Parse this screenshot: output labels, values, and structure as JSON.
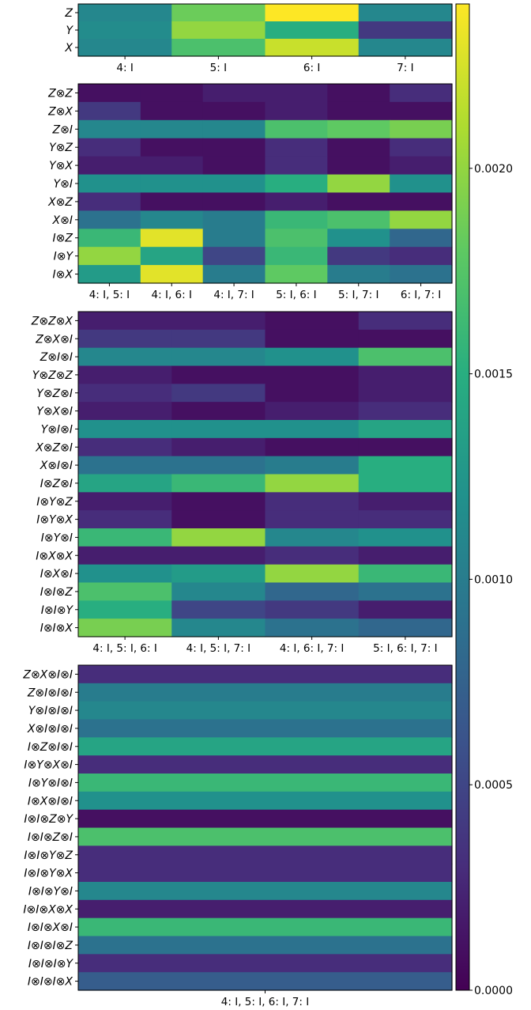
{
  "chart_data": {
    "type": "heatmap",
    "colormap": "viridis",
    "colorbar": {
      "min": 0.0,
      "max": 0.0024,
      "ticks": [
        0.0,
        0.0005,
        0.001,
        0.0015,
        0.002
      ],
      "tick_labels": [
        "0.0000",
        "0.0005",
        "0.0010",
        "0.0015",
        "0.0020"
      ]
    },
    "panels": [
      {
        "rows": [
          "Z",
          "Y",
          "X"
        ],
        "columns": [
          "4: I",
          "5: I",
          "6: I",
          "7: I"
        ],
        "values": [
          [
            0.0011,
            0.00185,
            0.0024,
            0.0011
          ],
          [
            0.00115,
            0.002,
            0.0015,
            0.0004
          ],
          [
            0.0011,
            0.0017,
            0.0022,
            0.0011
          ]
        ]
      },
      {
        "rows": [
          "Z⊗Z",
          "Z⊗X",
          "Z⊗I",
          "Y⊗Z",
          "Y⊗X",
          "Y⊗I",
          "X⊗Z",
          "X⊗I",
          "I⊗Z",
          "I⊗Y",
          "I⊗X"
        ],
        "columns": [
          "4: I, 5: I",
          "4: I, 6: I",
          "4: I, 7: I",
          "5: I, 6: I",
          "5: I, 7: I",
          "6: I, 7: I"
        ],
        "values": [
          [
            0.0001,
            0.0001,
            0.0002,
            0.0002,
            0.0001,
            0.0003
          ],
          [
            0.0004,
            0.0001,
            0.0001,
            0.0002,
            0.0001,
            0.0001
          ],
          [
            0.0011,
            0.0011,
            0.0011,
            0.0017,
            0.0018,
            0.0019
          ],
          [
            0.0003,
            0.0001,
            0.0001,
            0.0003,
            0.0001,
            0.0003
          ],
          [
            0.0002,
            0.0002,
            0.0001,
            0.0003,
            0.0001,
            0.0002
          ],
          [
            0.0012,
            0.0012,
            0.0012,
            0.0015,
            0.002,
            0.0012
          ],
          [
            0.0003,
            0.0001,
            0.0001,
            0.0002,
            0.0001,
            0.0001
          ],
          [
            0.0009,
            0.0011,
            0.001,
            0.0016,
            0.0017,
            0.002
          ],
          [
            0.0016,
            0.0023,
            0.001,
            0.0017,
            0.0012,
            0.0008
          ],
          [
            0.002,
            0.0014,
            0.0005,
            0.0016,
            0.0004,
            0.0003
          ],
          [
            0.0013,
            0.0023,
            0.001,
            0.0018,
            0.001,
            0.0009
          ]
        ]
      },
      {
        "rows": [
          "Z⊗Z⊗X",
          "Z⊗X⊗I",
          "Z⊗I⊗I",
          "Y⊗Z⊗Z",
          "Y⊗Z⊗I",
          "Y⊗X⊗I",
          "Y⊗I⊗I",
          "X⊗Z⊗I",
          "X⊗I⊗I",
          "I⊗Z⊗I",
          "I⊗Y⊗Z",
          "I⊗Y⊗X",
          "I⊗Y⊗I",
          "I⊗X⊗X",
          "I⊗X⊗I",
          "I⊗I⊗Z",
          "I⊗I⊗Y",
          "I⊗I⊗X"
        ],
        "columns": [
          "4: I, 5: I, 6: I",
          "4: I, 5: I, 7: I",
          "4: I, 6: I, 7: I",
          "5: I, 6: I, 7: I"
        ],
        "values": [
          [
            0.0002,
            0.0002,
            0.0001,
            0.0003
          ],
          [
            0.0004,
            0.0004,
            0.0001,
            0.0001
          ],
          [
            0.0011,
            0.0011,
            0.0012,
            0.0017
          ],
          [
            0.0002,
            0.0001,
            0.0001,
            0.0002
          ],
          [
            0.0003,
            0.0004,
            0.0001,
            0.0002
          ],
          [
            0.0002,
            0.0001,
            0.0002,
            0.0003
          ],
          [
            0.0012,
            0.0012,
            0.0012,
            0.0014
          ],
          [
            0.0003,
            0.0002,
            0.0001,
            0.0001
          ],
          [
            0.0009,
            0.0009,
            0.001,
            0.0015
          ],
          [
            0.0014,
            0.0016,
            0.002,
            0.0015
          ],
          [
            0.0002,
            0.0001,
            0.0003,
            0.0002
          ],
          [
            0.0003,
            0.0001,
            0.0003,
            0.0003
          ],
          [
            0.0016,
            0.002,
            0.0011,
            0.0012
          ],
          [
            0.0002,
            0.0002,
            0.0003,
            0.0002
          ],
          [
            0.0012,
            0.0013,
            0.002,
            0.0016
          ],
          [
            0.0017,
            0.0011,
            0.0008,
            0.0009
          ],
          [
            0.0015,
            0.0005,
            0.0004,
            0.0002
          ],
          [
            0.0019,
            0.0011,
            0.0009,
            0.0008
          ]
        ]
      },
      {
        "rows": [
          "Z⊗X⊗I⊗I",
          "Z⊗I⊗I⊗I",
          "Y⊗I⊗I⊗I",
          "X⊗I⊗I⊗I",
          "I⊗Z⊗I⊗I",
          "I⊗Y⊗X⊗I",
          "I⊗Y⊗I⊗I",
          "I⊗X⊗I⊗I",
          "I⊗I⊗Z⊗Y",
          "I⊗I⊗Z⊗I",
          "I⊗I⊗Y⊗Z",
          "I⊗I⊗Y⊗X",
          "I⊗I⊗Y⊗I",
          "I⊗I⊗X⊗X",
          "I⊗I⊗X⊗I",
          "I⊗I⊗I⊗Z",
          "I⊗I⊗I⊗Y",
          "I⊗I⊗I⊗X"
        ],
        "columns": [
          "4: I, 5: I, 6: I, 7: I"
        ],
        "values": [
          [
            0.0003
          ],
          [
            0.001
          ],
          [
            0.0011
          ],
          [
            0.0009
          ],
          [
            0.0014
          ],
          [
            0.0003
          ],
          [
            0.0016
          ],
          [
            0.0012
          ],
          [
            0.0001
          ],
          [
            0.0017
          ],
          [
            0.0003
          ],
          [
            0.0003
          ],
          [
            0.0011
          ],
          [
            0.0002
          ],
          [
            0.0016
          ],
          [
            0.0009
          ],
          [
            0.0003
          ],
          [
            0.0007
          ]
        ]
      }
    ]
  }
}
